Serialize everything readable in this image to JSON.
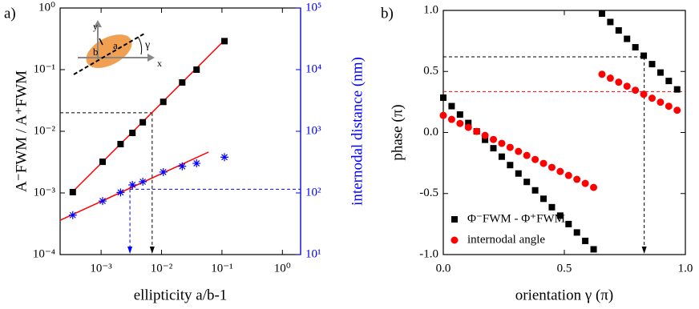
{
  "chart_data": [
    {
      "type": "scatter",
      "panel_label": "a)",
      "xlabel": "ellipticity a/b-1",
      "ylabel": "A⁻FWM / A⁺FWM",
      "y2label": "internodal distance (nm)",
      "xlog": true,
      "ylog": true,
      "y2log": true,
      "xlim": [
        0.00021,
        2
      ],
      "ylim": [
        0.0001,
        1
      ],
      "y2lim": [
        10,
        100000
      ],
      "xticks": [
        {
          "value": 0.001,
          "label": "10⁻³"
        },
        {
          "value": 0.01,
          "label": "10⁻²"
        },
        {
          "value": 0.1,
          "label": "10⁻¹"
        },
        {
          "value": 1,
          "label": "10⁰"
        }
      ],
      "yticks": [
        {
          "value": 0.0001,
          "label": "10⁻⁴"
        },
        {
          "value": 0.001,
          "label": "10⁻³"
        },
        {
          "value": 0.01,
          "label": "10⁻²"
        },
        {
          "value": 0.1,
          "label": "10⁻¹"
        },
        {
          "value": 1,
          "label": "10⁰"
        }
      ],
      "y2ticks": [
        {
          "value": 10,
          "label": "10¹"
        },
        {
          "value": 100,
          "label": "10²"
        },
        {
          "value": 1000,
          "label": "10³"
        },
        {
          "value": 10000,
          "label": "10⁴"
        },
        {
          "value": 100000,
          "label": "10⁵"
        }
      ],
      "y2color": "#0000ff",
      "x": [
        0.00034,
        0.00106,
        0.0021,
        0.0033,
        0.0049,
        0.0107,
        0.022,
        0.038,
        0.11
      ],
      "series": [
        {
          "marker": "square",
          "color": "#000000",
          "values": [
            0.00103,
            0.0032,
            0.0062,
            0.0094,
            0.014,
            0.03,
            0.062,
            0.1,
            0.29
          ]
        },
        {
          "marker": "star",
          "color": "#0000ff",
          "axis": "y2",
          "values": [
            43.6,
            74,
            102,
            135,
            152,
            218,
            270,
            302,
            380
          ]
        }
      ],
      "fits": [
        {
          "color": "#ff0000",
          "x": [
            0.00034,
            0.11
          ],
          "values": [
            0.00105,
            0.3
          ]
        },
        {
          "color": "#ff0000",
          "axis": "y2",
          "x": [
            0.00021,
            0.06
          ],
          "values": [
            36,
            460
          ]
        }
      ],
      "guides": [
        {
          "x": 0.007,
          "y": 0.02,
          "color": "#000000"
        },
        {
          "x": 0.003,
          "y": 115,
          "axis": "y2",
          "color": "#0000ff"
        }
      ],
      "inset_labels": {
        "x": "x",
        "y": "y",
        "a": "a",
        "b": "b",
        "angle": "γ"
      }
    },
    {
      "type": "scatter",
      "panel_label": "b)",
      "xlabel": "orientation γ (π)",
      "ylabel": "phase (π)",
      "xlim": [
        0,
        1
      ],
      "ylim": [
        -1,
        1
      ],
      "xticks": [
        {
          "value": 0,
          "label": "0.0"
        },
        {
          "value": 0.5,
          "label": "0.5"
        },
        {
          "value": 1,
          "label": "1.0"
        }
      ],
      "yticks": [
        {
          "value": -1,
          "label": "-1.0"
        },
        {
          "value": -0.5,
          "label": "-0.5"
        },
        {
          "value": 0,
          "label": "0.0"
        },
        {
          "value": 0.5,
          "label": "0.5"
        },
        {
          "value": 1,
          "label": "1.0"
        }
      ],
      "legend": "lower left",
      "x": [
        0,
        0.0345,
        0.069,
        0.1035,
        0.138,
        0.1725,
        0.207,
        0.2415,
        0.276,
        0.3105,
        0.345,
        0.3795,
        0.414,
        0.4485,
        0.483,
        0.5175,
        0.552,
        0.5865,
        0.621,
        0.6555,
        0.69,
        0.7245,
        0.759,
        0.7935,
        0.828,
        0.8625,
        0.897,
        0.9315,
        0.966
      ],
      "series": [
        {
          "name": "Φ⁻FWM - Φ⁺FWM",
          "marker": "square",
          "color": "#000000",
          "values": [
            0.285,
            0.216,
            0.147,
            0.078,
            0.009,
            -0.06,
            -0.129,
            -0.198,
            -0.267,
            -0.336,
            -0.405,
            -0.474,
            -0.543,
            -0.612,
            -0.681,
            -0.75,
            -0.819,
            -0.888,
            -0.957,
            0.974,
            0.905,
            0.836,
            0.767,
            0.698,
            0.629,
            0.56,
            0.491,
            0.422,
            0.353
          ]
        },
        {
          "name": "internodal angle",
          "marker": "circle",
          "color": "#ff0000",
          "values": [
            0.14,
            0.107,
            0.074,
            0.042,
            0.009,
            -0.024,
            -0.057,
            -0.089,
            -0.122,
            -0.155,
            -0.188,
            -0.221,
            -0.253,
            -0.286,
            -0.319,
            -0.352,
            -0.384,
            -0.417,
            -0.45,
            0.477,
            0.445,
            0.412,
            0.379,
            0.346,
            0.313,
            0.281,
            0.248,
            0.215,
            0.182
          ]
        }
      ],
      "guides": [
        {
          "x": 0.83,
          "y": 0.62,
          "color": "#000000"
        },
        {
          "y": 0.335,
          "color": "#ff0000"
        }
      ]
    }
  ]
}
